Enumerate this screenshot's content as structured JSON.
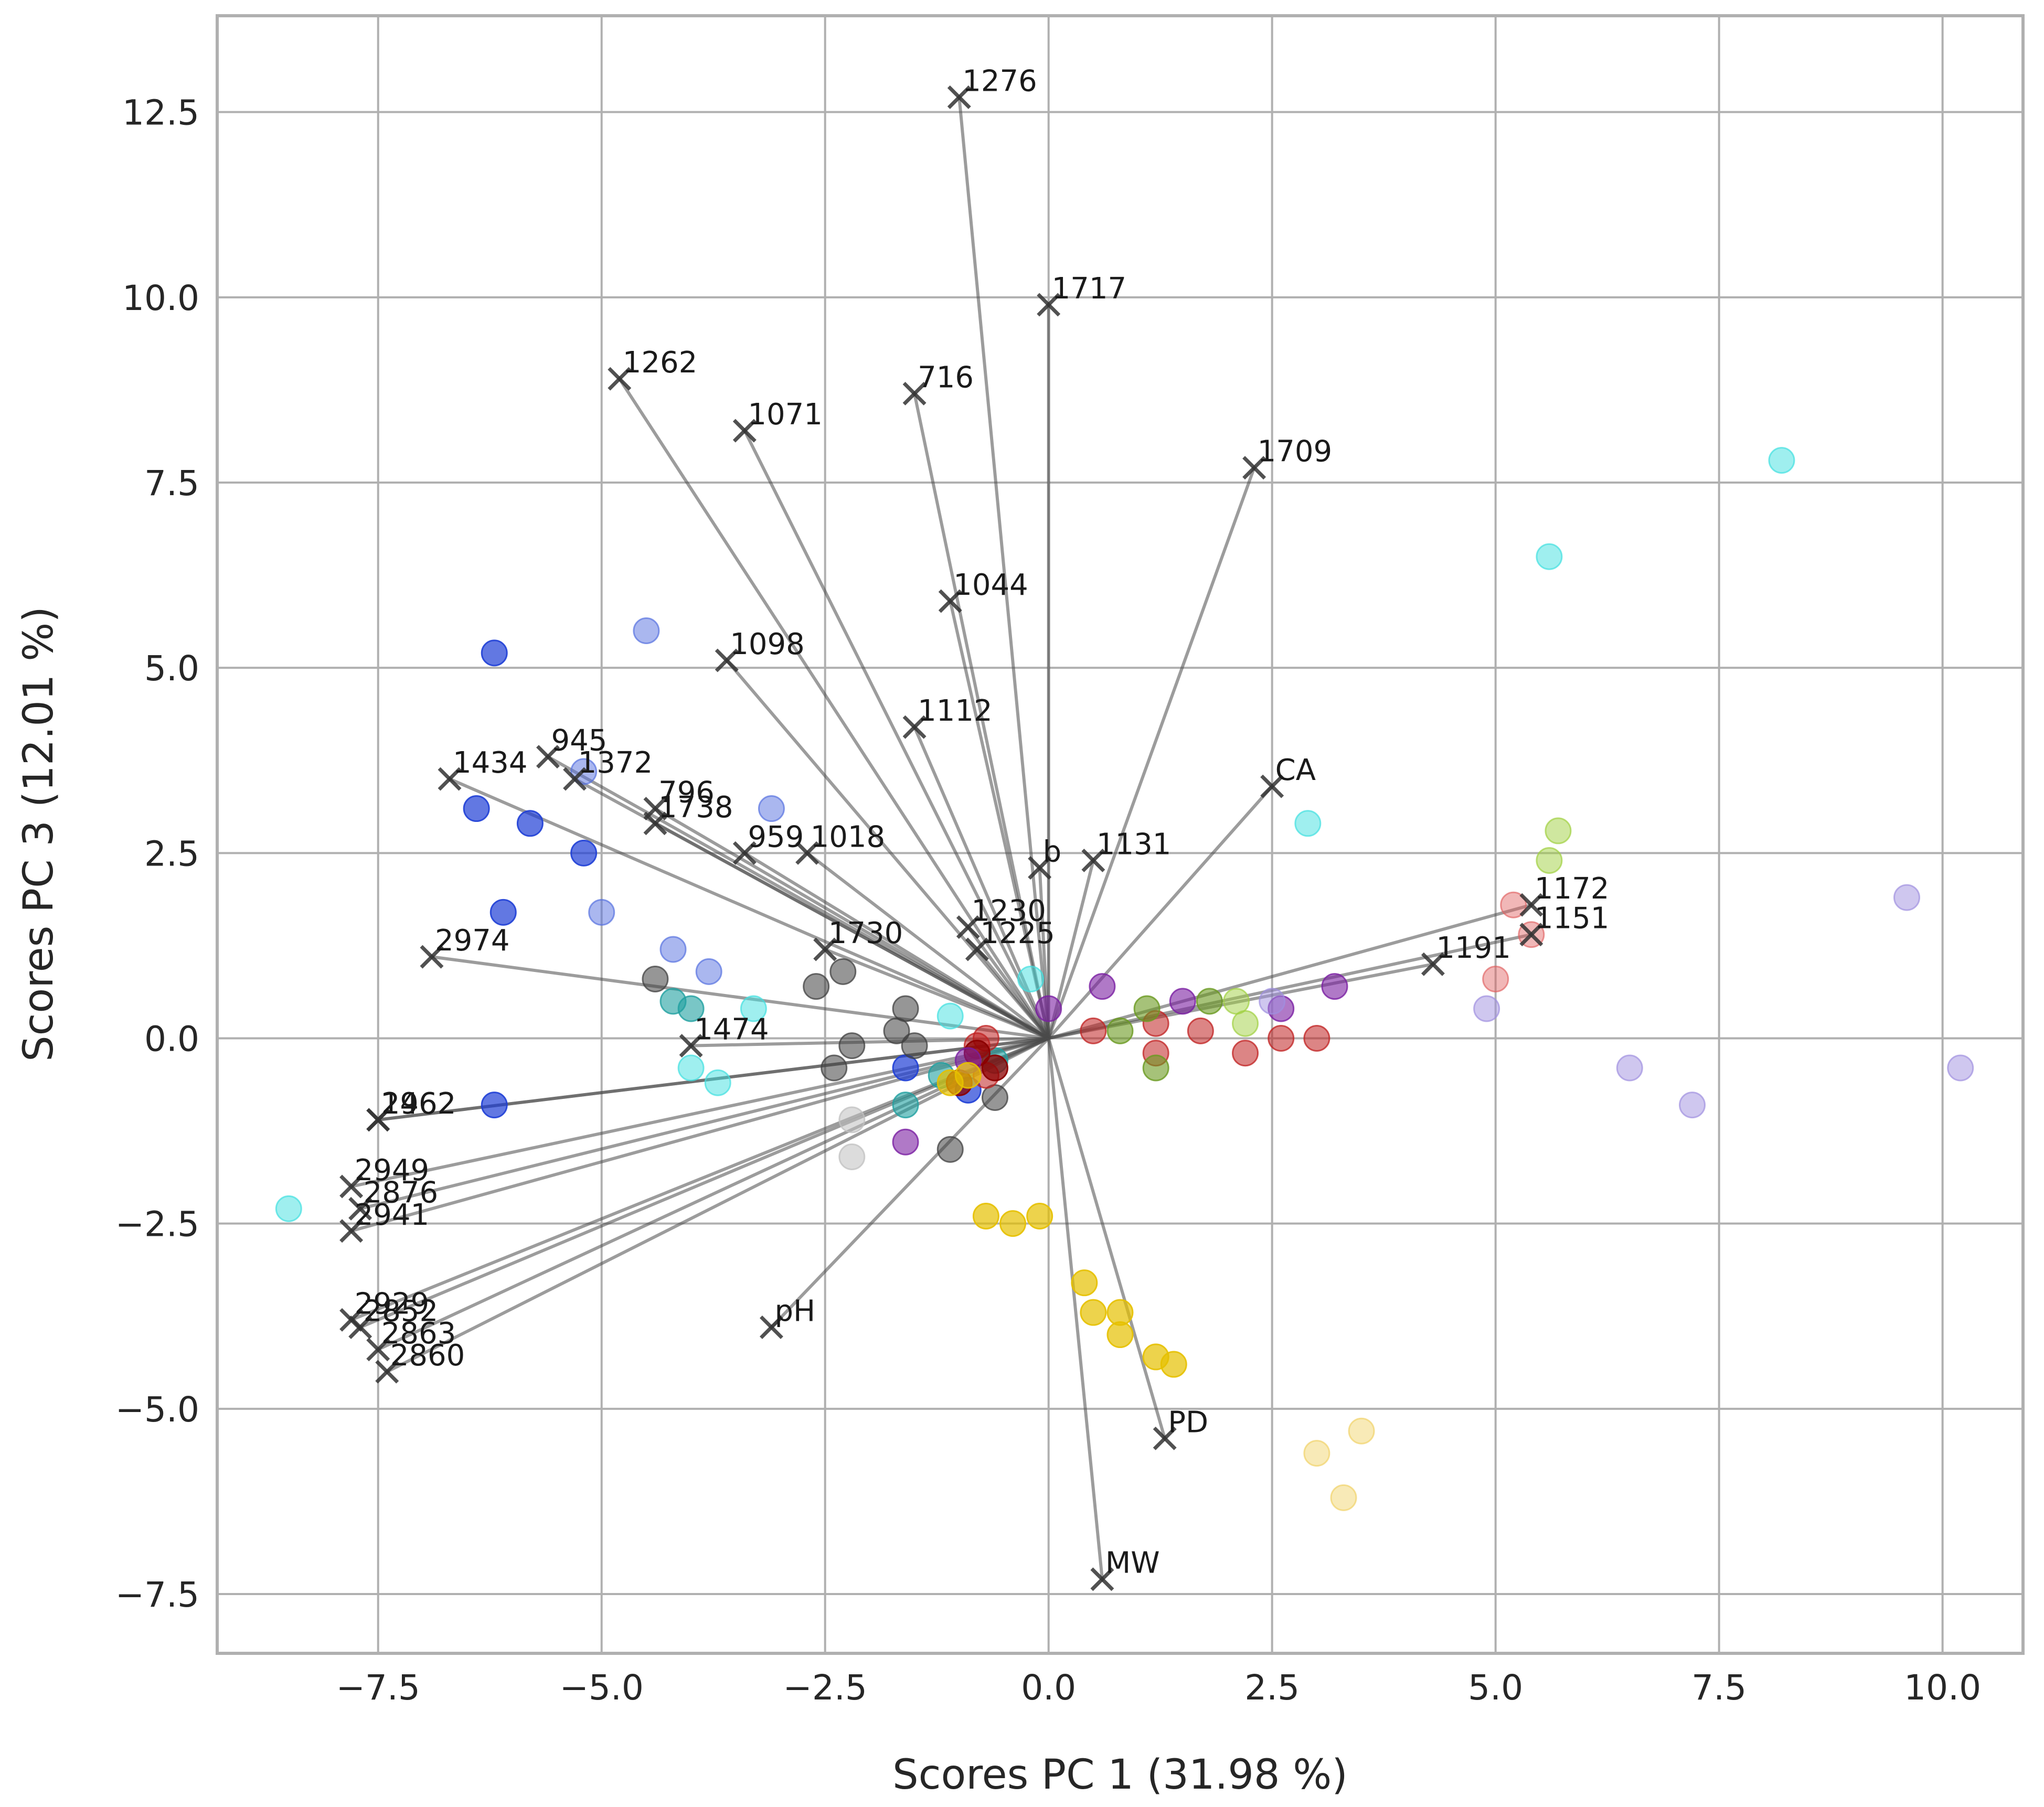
{
  "chart_data": {
    "type": "scatter",
    "title": "",
    "xlabel": "Scores PC 1 (31.98 %)",
    "ylabel": "Scores PC 3 (12.01 %)",
    "xlim": [
      -9.3,
      10.9
    ],
    "ylim": [
      -8.3,
      13.8
    ],
    "x_ticks": [
      -7.5,
      -5.0,
      -2.5,
      0.0,
      2.5,
      5.0,
      7.5,
      10.0
    ],
    "x_tick_labels": [
      "−7.5",
      "−5.0",
      "−2.5",
      "0.0",
      "2.5",
      "5.0",
      "7.5",
      "10.0"
    ],
    "y_ticks": [
      -7.5,
      -5.0,
      -2.5,
      0.0,
      2.5,
      5.0,
      7.5,
      10.0,
      12.5
    ],
    "y_tick_labels": [
      "−7.5",
      "−5.0",
      "−2.5",
      "0.0",
      "2.5",
      "5.0",
      "7.5",
      "10.0",
      "12.5"
    ],
    "grid": true,
    "colors": {
      "background": "#ffffff",
      "grid": "#b0b0b0",
      "arrow": "#4a4a4a",
      "marker": "#333333",
      "text": "#262626"
    },
    "score_groups": [
      {
        "name": "blue",
        "color": "#1f3fd6",
        "opacity": 0.7,
        "points": [
          [
            -6.2,
            5.2
          ],
          [
            -6.4,
            3.1
          ],
          [
            -5.8,
            2.9
          ],
          [
            -5.2,
            2.5
          ],
          [
            -6.1,
            1.7
          ],
          [
            -6.2,
            -0.9
          ],
          [
            -1.6,
            -0.4
          ],
          [
            -0.9,
            -0.7
          ]
        ]
      },
      {
        "name": "light-blue",
        "color": "#5570e0",
        "opacity": 0.5,
        "points": [
          [
            -4.5,
            5.5
          ],
          [
            -3.1,
            3.1
          ],
          [
            -5.0,
            1.7
          ],
          [
            -4.2,
            1.2
          ],
          [
            -3.8,
            0.9
          ],
          [
            -5.2,
            3.6
          ]
        ]
      },
      {
        "name": "cyan",
        "color": "#40e0e0",
        "opacity": 0.5,
        "points": [
          [
            8.2,
            7.8
          ],
          [
            5.6,
            6.5
          ],
          [
            2.9,
            2.9
          ],
          [
            -8.5,
            -2.3
          ],
          [
            -4.0,
            -0.4
          ],
          [
            -3.7,
            -0.6
          ],
          [
            -3.3,
            0.4
          ],
          [
            -0.2,
            0.8
          ],
          [
            -1.1,
            0.3
          ]
        ]
      },
      {
        "name": "teal",
        "color": "#20a0a0",
        "opacity": 0.6,
        "points": [
          [
            -4.2,
            0.5
          ],
          [
            -4.0,
            0.4
          ],
          [
            -1.6,
            -0.9
          ],
          [
            -1.2,
            -0.5
          ],
          [
            -0.6,
            -0.3
          ]
        ]
      },
      {
        "name": "gray",
        "color": "#404040",
        "opacity": 0.55,
        "points": [
          [
            -4.4,
            0.8
          ],
          [
            -2.3,
            0.9
          ],
          [
            -2.6,
            0.7
          ],
          [
            -1.6,
            0.4
          ],
          [
            -2.2,
            -0.1
          ],
          [
            -2.4,
            -0.4
          ],
          [
            -1.7,
            0.1
          ],
          [
            -1.5,
            -0.1
          ],
          [
            -1.1,
            -1.5
          ],
          [
            -0.6,
            -0.8
          ]
        ]
      },
      {
        "name": "light-gray",
        "color": "#c0c0c0",
        "opacity": 0.55,
        "points": [
          [
            -2.2,
            -1.6
          ],
          [
            -2.2,
            -1.1
          ]
        ]
      },
      {
        "name": "red",
        "color": "#c02020",
        "opacity": 0.55,
        "points": [
          [
            0.5,
            0.1
          ],
          [
            1.2,
            0.2
          ],
          [
            1.7,
            0.1
          ],
          [
            2.2,
            -0.2
          ],
          [
            2.6,
            0.0
          ],
          [
            3.0,
            0.0
          ],
          [
            -0.7,
            -0.5
          ],
          [
            -0.8,
            -0.1
          ],
          [
            -0.7,
            0.0
          ],
          [
            1.2,
            -0.2
          ]
        ]
      },
      {
        "name": "dark-red",
        "color": "#8b0000",
        "opacity": 0.75,
        "points": [
          [
            -1.0,
            -0.6
          ],
          [
            -0.6,
            -0.4
          ],
          [
            -0.8,
            -0.2
          ]
        ]
      },
      {
        "name": "pink",
        "color": "#e06060",
        "opacity": 0.45,
        "points": [
          [
            5.2,
            1.8
          ],
          [
            5.4,
            1.4
          ],
          [
            5.0,
            0.8
          ]
        ]
      },
      {
        "name": "purple",
        "color": "#7b1fa2",
        "opacity": 0.6,
        "points": [
          [
            0.6,
            0.7
          ],
          [
            1.5,
            0.5
          ],
          [
            2.6,
            0.4
          ],
          [
            3.2,
            0.7
          ],
          [
            0.0,
            0.4
          ],
          [
            -1.6,
            -1.4
          ],
          [
            -0.9,
            -0.3
          ]
        ]
      },
      {
        "name": "lavender",
        "color": "#a090e0",
        "opacity": 0.5,
        "points": [
          [
            9.6,
            1.9
          ],
          [
            10.2,
            -0.4
          ],
          [
            7.2,
            -0.9
          ],
          [
            6.5,
            -0.4
          ],
          [
            4.9,
            0.4
          ],
          [
            2.5,
            0.5
          ]
        ]
      },
      {
        "name": "yellow",
        "color": "#e6c000",
        "opacity": 0.7,
        "points": [
          [
            -0.7,
            -2.4
          ],
          [
            -0.4,
            -2.5
          ],
          [
            -0.1,
            -2.4
          ],
          [
            0.4,
            -3.3
          ],
          [
            0.5,
            -3.7
          ],
          [
            0.8,
            -3.7
          ],
          [
            0.8,
            -4.0
          ],
          [
            1.2,
            -4.3
          ],
          [
            1.4,
            -4.4
          ],
          [
            -1.1,
            -0.6
          ],
          [
            -0.9,
            -0.5
          ]
        ]
      },
      {
        "name": "pale-yellow",
        "color": "#f0d060",
        "opacity": 0.45,
        "points": [
          [
            3.0,
            -5.6
          ],
          [
            3.5,
            -5.3
          ],
          [
            3.3,
            -6.2
          ]
        ]
      },
      {
        "name": "olive",
        "color": "#6a9a20",
        "opacity": 0.6,
        "points": [
          [
            1.1,
            0.4
          ],
          [
            1.8,
            0.5
          ],
          [
            1.2,
            -0.4
          ],
          [
            0.8,
            0.1
          ]
        ]
      },
      {
        "name": "light-green",
        "color": "#a0d040",
        "opacity": 0.5,
        "points": [
          [
            5.7,
            2.8
          ],
          [
            5.6,
            2.4
          ],
          [
            2.2,
            0.2
          ],
          [
            2.1,
            0.5
          ]
        ]
      }
    ],
    "loadings": [
      {
        "label": "1276",
        "x": -1.0,
        "y": 12.7
      },
      {
        "label": "1717",
        "x": 0.0,
        "y": 9.9
      },
      {
        "label": "1262",
        "x": -4.8,
        "y": 8.9
      },
      {
        "label": "716",
        "x": -1.5,
        "y": 8.7
      },
      {
        "label": "1071",
        "x": -3.4,
        "y": 8.2
      },
      {
        "label": "1709",
        "x": 2.3,
        "y": 7.7
      },
      {
        "label": "1044",
        "x": -1.1,
        "y": 5.9
      },
      {
        "label": "1098",
        "x": -3.6,
        "y": 5.1
      },
      {
        "label": "1112",
        "x": -1.5,
        "y": 4.2
      },
      {
        "label": "945",
        "x": -5.6,
        "y": 3.8
      },
      {
        "label": "1434",
        "x": -6.7,
        "y": 3.5
      },
      {
        "label": "1372",
        "x": -5.3,
        "y": 3.5
      },
      {
        "label": "CA",
        "x": 2.5,
        "y": 3.4
      },
      {
        "label": "796",
        "x": -4.4,
        "y": 3.1
      },
      {
        "label": "1738",
        "x": -4.4,
        "y": 2.9
      },
      {
        "label": "959",
        "x": -3.4,
        "y": 2.5
      },
      {
        "label": "1018",
        "x": -2.7,
        "y": 2.5
      },
      {
        "label": "1131",
        "x": 0.5,
        "y": 2.4
      },
      {
        "label": "b",
        "x": -0.1,
        "y": 2.3
      },
      {
        "label": "1172",
        "x": 5.4,
        "y": 1.8
      },
      {
        "label": "1230",
        "x": -0.9,
        "y": 1.5
      },
      {
        "label": "1151",
        "x": 5.4,
        "y": 1.4
      },
      {
        "label": "1225",
        "x": -0.8,
        "y": 1.2
      },
      {
        "label": "1730",
        "x": -2.5,
        "y": 1.2
      },
      {
        "label": "2974",
        "x": -6.9,
        "y": 1.1
      },
      {
        "label": "1191",
        "x": 4.3,
        "y": 1.0
      },
      {
        "label": "1474",
        "x": -4.0,
        "y": -0.1
      },
      {
        "label": "1462",
        "x": -7.5,
        "y": -1.1
      },
      {
        "label": "2962",
        "x": -7.5,
        "y": -1.1
      },
      {
        "label": "2949",
        "x": -7.8,
        "y": -2.0
      },
      {
        "label": "2876",
        "x": -7.7,
        "y": -2.3
      },
      {
        "label": "2941",
        "x": -7.8,
        "y": -2.6
      },
      {
        "label": "2929",
        "x": -7.8,
        "y": -3.8
      },
      {
        "label": "2852",
        "x": -7.7,
        "y": -3.9
      },
      {
        "label": "2863",
        "x": -7.5,
        "y": -4.2
      },
      {
        "label": "2860",
        "x": -7.4,
        "y": -4.5
      },
      {
        "label": "pH",
        "x": -3.1,
        "y": -3.9
      },
      {
        "label": "PD",
        "x": 1.3,
        "y": -5.4
      },
      {
        "label": "MW",
        "x": 0.6,
        "y": -7.3
      }
    ]
  }
}
